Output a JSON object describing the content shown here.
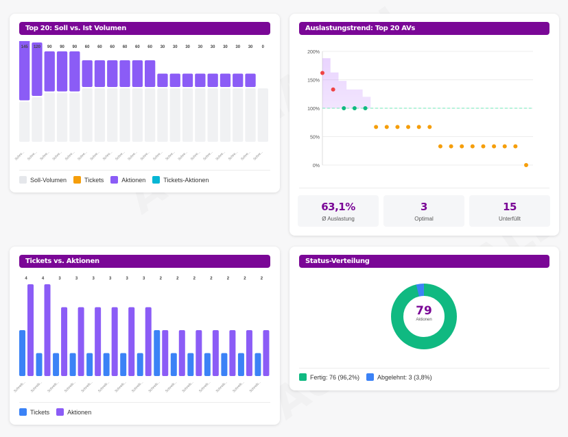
{
  "watermark": "AUTOMACALL",
  "colors": {
    "header": "#7a0796",
    "soll": "#f0f1f3",
    "tickets": "#f59e0b",
    "aktionen": "#8b5cf6",
    "tickets_aktionen": "#06b6d4",
    "tickets_blue": "#3b82f6",
    "fertig": "#10b981",
    "abgelehnt": "#3b82f6",
    "over": "#ef4444",
    "optimal": "#10b981",
    "under": "#f59e0b"
  },
  "panel_volumen": {
    "title": "Top 20: Soll vs. Ist Volumen",
    "legend": [
      "Soll-Volumen",
      "Tickets",
      "Aktionen",
      "Tickets-Aktionen"
    ]
  },
  "panel_trend": {
    "title": "Auslastungstrend: Top 20 AVs",
    "stats": [
      {
        "value": "63,1%",
        "label": "Ø Auslastung"
      },
      {
        "value": "3",
        "label": "Optimal"
      },
      {
        "value": "15",
        "label": "Unterfüllt"
      }
    ]
  },
  "panel_tickets": {
    "title": "Tickets vs. Aktionen",
    "legend": [
      "Tickets",
      "Aktionen"
    ]
  },
  "panel_status": {
    "title": "Status-Verteilung",
    "center_value": "79",
    "center_label": "Aktionen",
    "legend": [
      "Fertig: 76 (96,2%)",
      "Abgelehnt: 3 (3,8%)"
    ]
  },
  "chart_data": [
    {
      "type": "bar",
      "title": "Top 20: Soll vs. Ist Volumen",
      "categories": [
        "Schre...",
        "Schre...",
        "Schre...",
        "Schre...",
        "Schre...",
        "Schre...",
        "Schre...",
        "Schre...",
        "Schre...",
        "Schre...",
        "Schre...",
        "Schre...",
        "Schre...",
        "Schre...",
        "Schre...",
        "Schre...",
        "Schre...",
        "Schre...",
        "Schre...",
        "Schre..."
      ],
      "series": [
        {
          "name": "Soll-Volumen",
          "values": [
            90,
            100,
            110,
            110,
            110,
            120,
            120,
            120,
            120,
            120,
            120,
            120,
            120,
            120,
            120,
            120,
            120,
            120,
            120,
            120
          ]
        },
        {
          "name": "Aktionen",
          "values": [
            145,
            120,
            90,
            90,
            90,
            60,
            60,
            60,
            60,
            60,
            60,
            30,
            30,
            30,
            30,
            30,
            30,
            30,
            30,
            0
          ]
        }
      ],
      "data_labels": [
        "145",
        "120",
        "90",
        "90",
        "90",
        "60",
        "60",
        "60",
        "60",
        "60",
        "60",
        "30",
        "30",
        "30",
        "30",
        "30",
        "30",
        "30",
        "30",
        "0"
      ],
      "legend": [
        "Soll-Volumen",
        "Tickets",
        "Aktionen",
        "Tickets-Aktionen"
      ],
      "legend_position": "bottom"
    },
    {
      "type": "scatter",
      "title": "Auslastungstrend: Top 20 AVs",
      "x": [
        1,
        2,
        3,
        4,
        5,
        6,
        7,
        8,
        9,
        10,
        11,
        12,
        13,
        14,
        15,
        16,
        17,
        18,
        19,
        20
      ],
      "values": [
        162,
        133,
        100,
        100,
        100,
        67,
        67,
        67,
        67,
        67,
        67,
        33,
        33,
        33,
        33,
        33,
        33,
        33,
        33,
        0
      ],
      "area_values": [
        188,
        163,
        148,
        133,
        133,
        120
      ],
      "reference_line": 100,
      "ylim": [
        0,
        200
      ],
      "yticks": [
        "0%",
        "50%",
        "100%",
        "150%",
        "200%"
      ]
    },
    {
      "type": "bar",
      "title": "Tickets vs. Aktionen",
      "categories": [
        "Schreib...",
        "Schreib...",
        "Schreib...",
        "Schreib...",
        "Schreib...",
        "Schreib...",
        "Schreib...",
        "Schreib...",
        "Schreib...",
        "Schreib...",
        "Schreib...",
        "Schreib...",
        "Schreib...",
        "Schreib...",
        "Schreib..."
      ],
      "series": [
        {
          "name": "Tickets",
          "values": [
            2,
            1,
            1,
            1,
            1,
            1,
            1,
            1,
            2,
            1,
            1,
            1,
            1,
            1,
            1
          ]
        },
        {
          "name": "Aktionen",
          "values": [
            4,
            4,
            3,
            3,
            3,
            3,
            3,
            3,
            2,
            2,
            2,
            2,
            2,
            2,
            2
          ]
        }
      ],
      "data_labels": [
        "4",
        "4",
        "3",
        "3",
        "3",
        "3",
        "3",
        "3",
        "2",
        "2",
        "2",
        "2",
        "2",
        "2",
        "2"
      ],
      "legend": [
        "Tickets",
        "Aktionen"
      ],
      "legend_position": "bottom"
    },
    {
      "type": "pie",
      "title": "Status-Verteilung",
      "labels": [
        "Fertig",
        "Abgelehnt"
      ],
      "values": [
        76,
        3
      ],
      "percent": [
        96.2,
        3.8
      ],
      "total": 79
    }
  ]
}
